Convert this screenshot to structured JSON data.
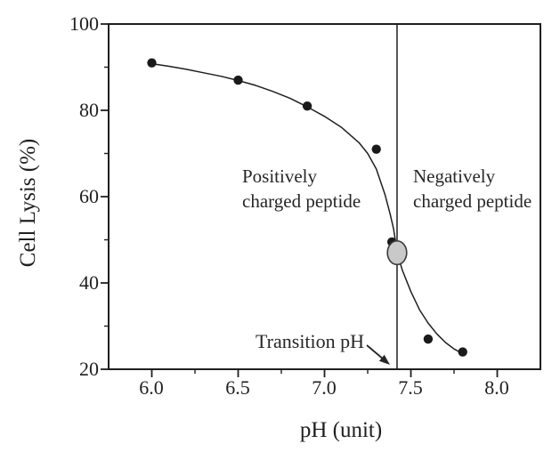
{
  "figure": {
    "background": "#ffffff",
    "ink_color": "#1f1f1f"
  },
  "axes": {
    "x": {
      "title": "pH (unit)",
      "range": [
        5.75,
        8.25
      ],
      "tick_labels": [
        "6.0",
        "6.5",
        "7.0",
        "7.5",
        "8.0"
      ],
      "tick_values": [
        6.0,
        6.5,
        7.0,
        7.5,
        8.0
      ],
      "minor_tick_values": [
        6.25,
        6.75,
        7.25,
        7.75
      ]
    },
    "y": {
      "title": "Cell Lysis (%)",
      "range": [
        20,
        100
      ],
      "tick_labels": [
        "100",
        "80",
        "60",
        "40",
        "20"
      ],
      "tick_values": [
        100,
        80,
        60,
        40,
        20
      ],
      "minor_tick_values": [
        90,
        70,
        50,
        30
      ]
    }
  },
  "annotations": {
    "left_region": {
      "line1": "Positively",
      "line2": "charged peptide"
    },
    "right_region": {
      "line1": "Negatively",
      "line2": "charged peptide"
    },
    "transition": {
      "label": "Transition pH",
      "ph": 7.42
    }
  },
  "chart_data": {
    "type": "scatter",
    "title": "",
    "xlabel": "pH (unit)",
    "ylabel": "Cell Lysis (%)",
    "xlim": [
      5.75,
      8.25
    ],
    "ylim": [
      20,
      100
    ],
    "grid": false,
    "legend": "none",
    "marker_color": "#1a1a1a",
    "line_color": "#1f1f1f",
    "points": [
      {
        "ph": 6.0,
        "lysis": 91
      },
      {
        "ph": 6.5,
        "lysis": 87
      },
      {
        "ph": 6.9,
        "lysis": 81
      },
      {
        "ph": 7.3,
        "lysis": 71
      },
      {
        "ph": 7.39,
        "lysis": 49.5
      },
      {
        "ph": 7.6,
        "lysis": 27
      },
      {
        "ph": 7.8,
        "lysis": 24
      }
    ],
    "vertical_line_ph": 7.42,
    "transition_marker": {
      "ph": 7.42,
      "lysis": 47,
      "fill": "#c9c9c9",
      "stroke": "#3a3a3a"
    },
    "curve_samples": [
      [
        6.0,
        90.8
      ],
      [
        6.1,
        90.2
      ],
      [
        6.2,
        89.5
      ],
      [
        6.3,
        88.7
      ],
      [
        6.4,
        87.9
      ],
      [
        6.5,
        86.9
      ],
      [
        6.6,
        85.8
      ],
      [
        6.7,
        84.4
      ],
      [
        6.8,
        82.8
      ],
      [
        6.9,
        80.8
      ],
      [
        7.0,
        78.6
      ],
      [
        7.1,
        76.0
      ],
      [
        7.2,
        72.5
      ],
      [
        7.25,
        70.0
      ],
      [
        7.3,
        66.4
      ],
      [
        7.35,
        60.5
      ],
      [
        7.38,
        56.0
      ],
      [
        7.4,
        52.5
      ],
      [
        7.42,
        47.2
      ],
      [
        7.45,
        43.0
      ],
      [
        7.5,
        38.0
      ],
      [
        7.55,
        33.8
      ],
      [
        7.6,
        30.7
      ],
      [
        7.65,
        28.2
      ],
      [
        7.7,
        26.2
      ],
      [
        7.75,
        24.7
      ],
      [
        7.81,
        23.4
      ]
    ]
  }
}
